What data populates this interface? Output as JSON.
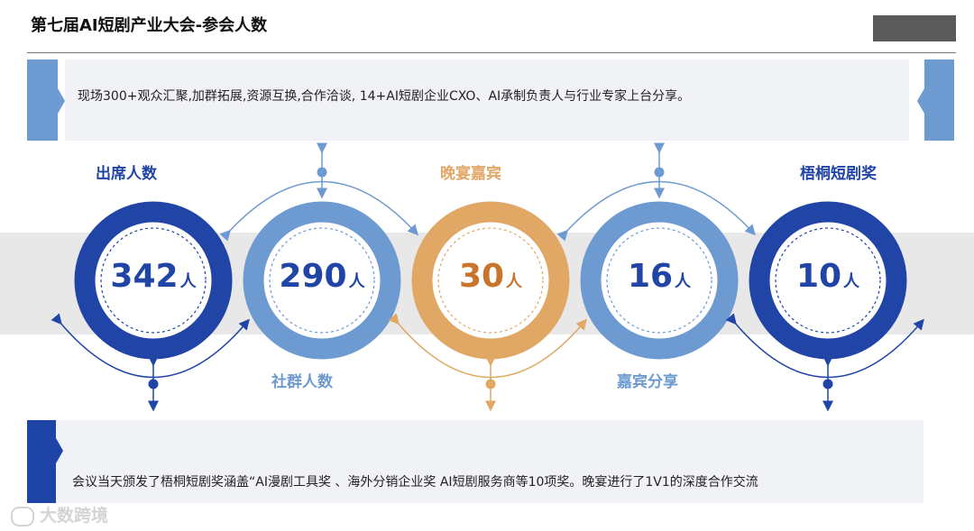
{
  "header": {
    "title": "第七届AI短剧产业大会-参会人数"
  },
  "top_card": {
    "text": "现场300+观众汇聚,加群拓展,资源互换,合作洽谈, 14+AI短剧企业CXO、AI承制负责人与行业专家上台分享。"
  },
  "stats": [
    {
      "label": "出席人数",
      "value": "342",
      "unit": "人",
      "color": "#2145a6"
    },
    {
      "label": "社群人数",
      "value": "290",
      "unit": "人",
      "color": "#6d9ad0"
    },
    {
      "label": "晚宴嘉宾",
      "value": "30",
      "unit": "人",
      "color": "#e0a765"
    },
    {
      "label": "嘉宾分享",
      "value": "16",
      "unit": "人",
      "color": "#6d9ad0"
    },
    {
      "label": "梧桐短剧奖",
      "value": "10",
      "unit": "人",
      "color": "#2145a6"
    }
  ],
  "bottom_card": {
    "text": "会议当天颁发了梧桐短剧奖涵盖“AI漫剧工具奖 、海外分销企业奖 AI短剧服务商等10项奖。晚宴进行了1V1的深度合作交流"
  },
  "watermark": {
    "text": "大数跨境"
  }
}
